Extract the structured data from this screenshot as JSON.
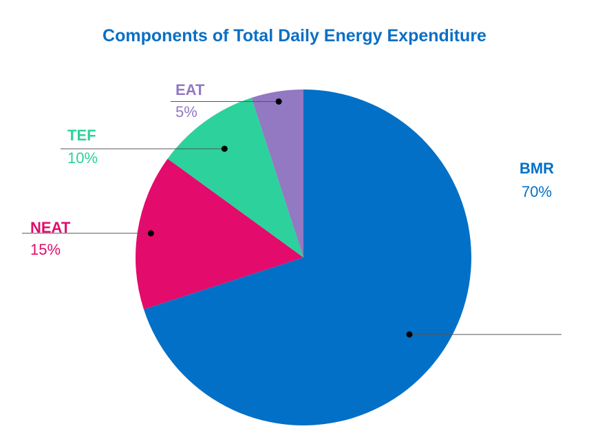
{
  "chart_data": {
    "type": "pie",
    "title": "Components of Total Daily Energy Expenditure",
    "slices": [
      {
        "name": "BMR",
        "value": 70,
        "label": "70%",
        "color": "#0270c6"
      },
      {
        "name": "NEAT",
        "value": 15,
        "label": "15%",
        "color": "#e30b6b"
      },
      {
        "name": "TEF",
        "value": 10,
        "label": "10%",
        "color": "#2cd19c"
      },
      {
        "name": "EAT",
        "value": 5,
        "label": "5%",
        "color": "#9378c2"
      }
    ],
    "start_angle": "12 o'clock",
    "direction": "clockwise",
    "legend": "none"
  },
  "colors": {
    "title": "#0b6fc6",
    "leader_line": "#555555",
    "leader_dot": "#000000"
  }
}
